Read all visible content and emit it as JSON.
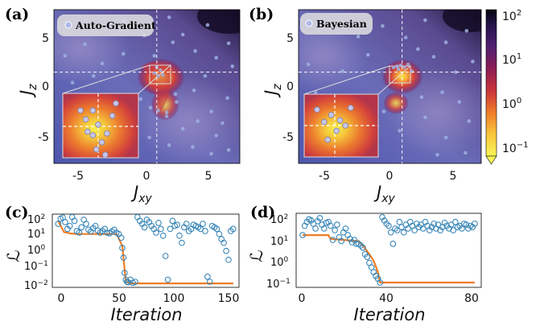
{
  "panel_labels": {
    "a": "(a)",
    "b": "(b)",
    "c": "(c)",
    "d": "(d)"
  },
  "colors": {
    "accent_line": "#f07c24",
    "marker_edge": "#3a87b8",
    "heat_low": "#f5f542",
    "heat_high": "#1a1040",
    "cloud": "#9fb0e0"
  },
  "chart_data": [
    {
      "id": "a",
      "type": "heatmap",
      "legend": "Auto-Gradient",
      "xlabel": "J_xy",
      "ylabel": "J_z",
      "xlim": [
        -7.5,
        7.5
      ],
      "ylim": [
        -8,
        8
      ],
      "xticks": [
        "-5",
        "0",
        "5"
      ],
      "yticks": [
        "5",
        "0",
        "-5"
      ],
      "crosshair": [
        0.8,
        1.5
      ],
      "points": [
        [
          -5.6,
          6.1
        ],
        [
          -5.0,
          4.4
        ],
        [
          -3.6,
          2.4
        ],
        [
          -1.8,
          6.8
        ],
        [
          -0.2,
          5.3
        ],
        [
          1.8,
          7.2
        ],
        [
          2.9,
          5.4
        ],
        [
          4.9,
          6.4
        ],
        [
          6.6,
          4.5
        ],
        [
          6.9,
          2.1
        ],
        [
          5.6,
          3.0
        ],
        [
          3.9,
          3.7
        ],
        [
          2.1,
          4.6
        ],
        [
          0.6,
          3.2
        ],
        [
          -1.9,
          3.4
        ],
        [
          -4.3,
          1.1
        ],
        [
          -6.0,
          0.4
        ],
        [
          -1.6,
          -1.0
        ],
        [
          2.4,
          -1.6
        ],
        [
          3.8,
          -0.4
        ],
        [
          5.2,
          -2.6
        ],
        [
          6.5,
          -1.2
        ],
        [
          4.1,
          -3.6
        ],
        [
          2.9,
          -4.4
        ],
        [
          1.6,
          -3.1
        ],
        [
          0.2,
          -5.3
        ],
        [
          1.8,
          -6.1
        ],
        [
          3.7,
          -6.3
        ],
        [
          5.6,
          -5.1
        ],
        [
          6.6,
          -6.6
        ],
        [
          0.9,
          1.1
        ],
        [
          1.1,
          1.7
        ],
        [
          0.6,
          1.4
        ],
        [
          1.3,
          1.2
        ],
        [
          0.8,
          2.0
        ],
        [
          0.3,
          -2.2
        ],
        [
          0.9,
          -2.5
        ],
        [
          1.6,
          -2.7
        ],
        [
          -0.5,
          -1.3
        ],
        [
          2.3,
          -0.8
        ],
        [
          4.7,
          1.1
        ],
        [
          6.1,
          -3.8
        ],
        [
          -6.6,
          3.2
        ],
        [
          5.2,
          -7.0
        ]
      ],
      "inset_points": [
        [
          -0.7,
          0.4
        ],
        [
          -0.3,
          0.9
        ],
        [
          0.0,
          0.1
        ],
        [
          0.5,
          -0.4
        ],
        [
          0.2,
          -0.9
        ],
        [
          -0.6,
          -0.3
        ],
        [
          0.8,
          0.6
        ],
        [
          -0.1,
          -1.3
        ],
        [
          0.4,
          -1.6
        ],
        [
          -1.0,
          0.9
        ],
        [
          1.0,
          1.3
        ],
        [
          -0.3,
          -0.5
        ]
      ]
    },
    {
      "id": "b",
      "type": "heatmap",
      "legend": "Bayesian",
      "xlabel": "J_xy",
      "ylabel": "J_z",
      "xlim": [
        -7.5,
        7.5
      ],
      "ylim": [
        -8,
        8
      ],
      "xticks": [
        "-5",
        "0",
        "5"
      ],
      "yticks": [
        "5",
        "0",
        "-5"
      ],
      "crosshair": [
        1.0,
        1.5
      ],
      "points": [
        [
          -5.9,
          5.9
        ],
        [
          -4.3,
          6.6
        ],
        [
          -2.6,
          5.2
        ],
        [
          -0.6,
          6.3
        ],
        [
          1.3,
          5.1
        ],
        [
          2.9,
          6.9
        ],
        [
          4.6,
          4.6
        ],
        [
          6.3,
          5.8
        ],
        [
          6.8,
          2.6
        ],
        [
          5.4,
          1.5
        ],
        [
          3.6,
          3.1
        ],
        [
          2.3,
          3.9
        ],
        [
          -1.8,
          3.3
        ],
        [
          -3.9,
          1.6
        ],
        [
          -6.1,
          -0.6
        ],
        [
          -5.2,
          -3.6
        ],
        [
          -3.1,
          -4.9
        ],
        [
          -1.2,
          -6.4
        ],
        [
          0.8,
          -4.6
        ],
        [
          2.9,
          -3.2
        ],
        [
          4.6,
          -5.3
        ],
        [
          6.5,
          -3.6
        ],
        [
          6.2,
          -6.9
        ],
        [
          3.9,
          -7.1
        ],
        [
          2.6,
          -1.1
        ],
        [
          4.3,
          -0.6
        ],
        [
          -0.5,
          -2.6
        ],
        [
          -6.7,
          2.3
        ],
        [
          0.3,
          2.0
        ],
        [
          0.6,
          2.1
        ],
        [
          0.9,
          2.2
        ],
        [
          1.2,
          2.0
        ],
        [
          1.5,
          2.3
        ],
        [
          0.7,
          1.8
        ],
        [
          1.8,
          1.6
        ],
        [
          5.7,
          -1.6
        ],
        [
          -2.3,
          -1.9
        ]
      ],
      "inset_points": [
        [
          -0.6,
          0.2
        ],
        [
          -0.2,
          0.6
        ],
        [
          0.3,
          0.3
        ],
        [
          0.6,
          0.0
        ],
        [
          0.1,
          -0.3
        ],
        [
          -0.4,
          -0.8
        ],
        [
          0.9,
          1.0
        ],
        [
          -1.0,
          0.9
        ]
      ]
    },
    {
      "id": "colorbar",
      "type": "heatmap",
      "scale": "log",
      "range": [
        0.05,
        100
      ],
      "ticks": [
        "10^2",
        "10^1",
        "10^0",
        "10^-1"
      ]
    },
    {
      "id": "c",
      "type": "line",
      "xlabel": "Iteration",
      "ylabel": "ℒ",
      "yscale": "log",
      "xlim": [
        -5,
        155
      ],
      "ylim": [
        0.007,
        150
      ],
      "xticks": [
        "0",
        "50",
        "100",
        "150"
      ],
      "yticks": [
        "10^2",
        "10^1",
        "10^0",
        "10^-1",
        "10^-2"
      ],
      "best_so_far": {
        "x": [
          0,
          5,
          10,
          15,
          50,
          55,
          58,
          62,
          150
        ],
        "y": [
          60,
          13,
          11,
          10,
          10,
          2.0,
          0.015,
          0.012,
          0.012
        ]
      },
      "samples": {
        "x": [
          0,
          2,
          4,
          6,
          8,
          10,
          12,
          14,
          16,
          18,
          20,
          22,
          24,
          26,
          28,
          30,
          32,
          34,
          36,
          38,
          40,
          42,
          44,
          46,
          48,
          50,
          52,
          54,
          55,
          56,
          57,
          58,
          59,
          60,
          62,
          64,
          66,
          68,
          70,
          72,
          74,
          76,
          78,
          80,
          82,
          84,
          86,
          88,
          90,
          92,
          94,
          96,
          98,
          100,
          102,
          104,
          106,
          108,
          110,
          112,
          114,
          116,
          118,
          120,
          122,
          124,
          126,
          128,
          130,
          132,
          134,
          136,
          138,
          140,
          142,
          144,
          146,
          148,
          150
        ],
        "y": [
          40,
          80,
          95,
          50,
          20,
          30,
          100,
          60,
          15,
          12,
          25,
          70,
          40,
          18,
          14,
          22,
          30,
          16,
          12,
          15,
          20,
          12,
          11,
          14,
          18,
          12,
          10,
          6,
          1.5,
          0.4,
          0.05,
          0.02,
          0.015,
          0.014,
          0.02,
          0.013,
          0.015,
          100,
          60,
          40,
          25,
          70,
          50,
          30,
          20,
          12,
          45,
          20,
          8,
          0.5,
          0.02,
          20,
          60,
          30,
          35,
          8,
          3,
          25,
          40,
          15,
          20,
          35,
          30,
          25,
          20,
          40,
          15,
          0.03,
          0.015,
          30,
          25,
          20,
          10,
          5,
          3,
          1.0,
          0.3,
          15,
          20
        ]
      }
    },
    {
      "id": "d",
      "type": "line",
      "xlabel": "Iteration",
      "ylabel": "ℒ",
      "yscale": "log",
      "xlim": [
        -3,
        83
      ],
      "ylim": [
        0.06,
        150
      ],
      "xticks": [
        "0",
        "40",
        "80"
      ],
      "yticks": [
        "10^2",
        "10^1",
        "10^0",
        "10^-1"
      ],
      "best_so_far": {
        "x": [
          0,
          1,
          2,
          12,
          13,
          26,
          28,
          31,
          33,
          35,
          36,
          80
        ],
        "y": [
          15,
          15,
          15,
          15,
          10,
          8,
          5,
          2,
          1.0,
          0.3,
          0.1,
          0.1
        ]
      },
      "samples": {
        "x": [
          0,
          1,
          2,
          3,
          4,
          5,
          6,
          7,
          8,
          9,
          10,
          11,
          12,
          13,
          14,
          15,
          16,
          17,
          18,
          19,
          20,
          21,
          22,
          23,
          24,
          25,
          26,
          27,
          28,
          29,
          30,
          31,
          32,
          33,
          34,
          35,
          36,
          37,
          38,
          39,
          40,
          41,
          42,
          43,
          44,
          45,
          46,
          47,
          48,
          49,
          50,
          51,
          52,
          53,
          54,
          55,
          56,
          57,
          58,
          59,
          60,
          61,
          62,
          63,
          64,
          65,
          66,
          67,
          68,
          69,
          70,
          71,
          72,
          73,
          74,
          75,
          76,
          77,
          78,
          79,
          80
        ],
        "y": [
          15,
          40,
          60,
          80,
          70,
          50,
          30,
          65,
          90,
          45,
          30,
          55,
          60,
          40,
          9,
          25,
          45,
          12,
          8,
          20,
          30,
          15,
          10,
          7,
          9,
          6,
          6,
          5,
          4,
          2,
          1.5,
          0.8,
          0.5,
          0.3,
          0.2,
          0.15,
          0.1,
          100,
          70,
          50,
          40,
          20,
          6,
          30,
          25,
          60,
          35,
          20,
          45,
          30,
          60,
          40,
          25,
          50,
          35,
          45,
          30,
          60,
          40,
          25,
          35,
          50,
          30,
          45,
          25,
          35,
          55,
          40,
          30,
          45,
          25,
          60,
          35,
          40,
          30,
          50,
          45,
          30,
          40,
          35,
          50
        ]
      }
    }
  ]
}
